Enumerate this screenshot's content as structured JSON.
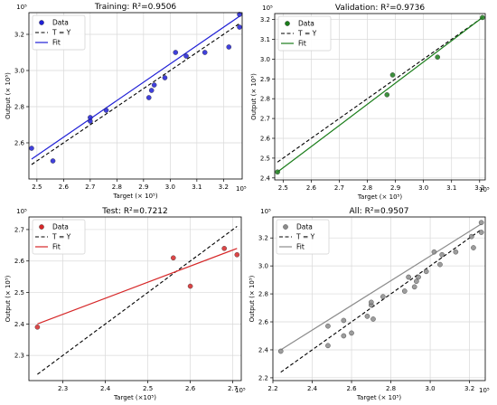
{
  "chart_data": [
    {
      "type": "scatter",
      "title": "Training: R²=0.9506",
      "xlabel": "Target (× 10⁵)",
      "ylabel": "Output (× 10⁵)",
      "x_exponent": "10⁵",
      "y_exponent": "10⁵",
      "xlim": [
        2.47,
        3.27
      ],
      "ylim": [
        2.4,
        3.32
      ],
      "xticks": [
        "2.5",
        "2.6",
        "2.7",
        "2.8",
        "2.9",
        "3.0",
        "3.1",
        "3.2"
      ],
      "xtick_values": [
        2.5,
        2.6,
        2.7,
        2.8,
        2.9,
        3.0,
        3.1,
        3.2
      ],
      "yticks": [
        "2.6",
        "2.8",
        "3.0",
        "3.2"
      ],
      "ytick_values": [
        2.6,
        2.8,
        3.0,
        3.2
      ],
      "grid": true,
      "legend": "top-left",
      "legend_entries": [
        "Data",
        "T = Y",
        "Fit"
      ],
      "color": "#1f1fd6",
      "points": [
        [
          2.48,
          2.57
        ],
        [
          2.56,
          2.5
        ],
        [
          2.7,
          2.72
        ],
        [
          2.7,
          2.74
        ],
        [
          2.76,
          2.78
        ],
        [
          2.92,
          2.85
        ],
        [
          2.93,
          2.89
        ],
        [
          2.94,
          2.92
        ],
        [
          2.98,
          2.96
        ],
        [
          3.02,
          3.1
        ],
        [
          3.06,
          3.08
        ],
        [
          3.13,
          3.1
        ],
        [
          3.22,
          3.13
        ],
        [
          3.26,
          3.24
        ],
        [
          3.26,
          3.31
        ]
      ],
      "fit": [
        [
          2.48,
          2.51
        ],
        [
          3.26,
          3.3
        ]
      ],
      "identity": [
        [
          2.48,
          2.48
        ],
        [
          3.26,
          3.26
        ]
      ]
    },
    {
      "type": "scatter",
      "title": "Validation: R²=0.9736",
      "xlabel": "Target (× 10⁵)",
      "ylabel": "Output (× 10⁵)",
      "x_exponent": "10⁵",
      "y_exponent": "10⁵",
      "xlim": [
        2.47,
        3.22
      ],
      "ylim": [
        2.39,
        3.23
      ],
      "xticks": [
        "2.5",
        "2.6",
        "2.7",
        "2.8",
        "2.9",
        "3.0",
        "3.1",
        "3.2"
      ],
      "xtick_values": [
        2.5,
        2.6,
        2.7,
        2.8,
        2.9,
        3.0,
        3.1,
        3.2
      ],
      "yticks": [
        "2.4",
        "2.5",
        "2.6",
        "2.7",
        "2.8",
        "2.9",
        "3.0",
        "3.1",
        "3.2"
      ],
      "ytick_values": [
        2.4,
        2.5,
        2.6,
        2.7,
        2.8,
        2.9,
        3.0,
        3.1,
        3.2
      ],
      "grid": true,
      "legend": "top-left",
      "legend_entries": [
        "Data",
        "T = Y",
        "Fit"
      ],
      "color": "#1a7d1a",
      "points": [
        [
          2.48,
          2.43
        ],
        [
          2.87,
          2.82
        ],
        [
          2.89,
          2.92
        ],
        [
          3.05,
          3.01
        ],
        [
          3.21,
          3.21
        ]
      ],
      "fit": [
        [
          2.48,
          2.43
        ],
        [
          3.21,
          3.21
        ]
      ],
      "identity": [
        [
          2.48,
          2.48
        ],
        [
          3.21,
          3.21
        ]
      ]
    },
    {
      "type": "scatter",
      "title": "Test: R²=0.7212",
      "xlabel": "Target (×10⁵)",
      "ylabel": "Output (× 10⁵)",
      "x_exponent": "10⁵",
      "y_exponent": "10⁵",
      "xlim": [
        2.22,
        2.72
      ],
      "ylim": [
        2.22,
        2.74
      ],
      "xticks": [
        "2.3",
        "2.4",
        "2.5",
        "2.6",
        "2.7"
      ],
      "xtick_values": [
        2.3,
        2.4,
        2.5,
        2.6,
        2.7
      ],
      "yticks": [
        "2.3",
        "2.4",
        "2.5",
        "2.6",
        "2.7"
      ],
      "ytick_values": [
        2.3,
        2.4,
        2.5,
        2.6,
        2.7
      ],
      "grid": true,
      "legend": "top-left",
      "legend_entries": [
        "Data",
        "T = Y",
        "Fit"
      ],
      "color": "#d62728",
      "points": [
        [
          2.24,
          2.39
        ],
        [
          2.56,
          2.61
        ],
        [
          2.6,
          2.52
        ],
        [
          2.68,
          2.64
        ],
        [
          2.71,
          2.62
        ]
      ],
      "fit": [
        [
          2.24,
          2.4
        ],
        [
          2.71,
          2.64
        ]
      ],
      "identity": [
        [
          2.24,
          2.24
        ],
        [
          2.71,
          2.71
        ]
      ]
    },
    {
      "type": "scatter",
      "title": "All: R²=0.9507",
      "xlabel": "Target (× 10⁵)",
      "ylabel": "Output (× 10⁵)",
      "x_exponent": "10⁵",
      "y_exponent": "10⁵",
      "xlim": [
        2.2,
        3.28
      ],
      "ylim": [
        2.18,
        3.35
      ],
      "xticks": [
        "2.2",
        "2.4",
        "2.6",
        "2.8",
        "3.0",
        "3.2"
      ],
      "xtick_values": [
        2.2,
        2.4,
        2.6,
        2.8,
        3.0,
        3.2
      ],
      "yticks": [
        "2.2",
        "2.4",
        "2.6",
        "2.8",
        "3.0",
        "3.2"
      ],
      "ytick_values": [
        2.2,
        2.4,
        2.6,
        2.8,
        3.0,
        3.2
      ],
      "grid": true,
      "legend": "top-left",
      "legend_entries": [
        "Data",
        "T = Y",
        "Fit"
      ],
      "color": "#8c8c8c",
      "points": [
        [
          2.24,
          2.39
        ],
        [
          2.48,
          2.43
        ],
        [
          2.48,
          2.57
        ],
        [
          2.56,
          2.5
        ],
        [
          2.56,
          2.61
        ],
        [
          2.6,
          2.52
        ],
        [
          2.68,
          2.64
        ],
        [
          2.7,
          2.72
        ],
        [
          2.7,
          2.74
        ],
        [
          2.71,
          2.62
        ],
        [
          2.76,
          2.78
        ],
        [
          2.87,
          2.82
        ],
        [
          2.89,
          2.92
        ],
        [
          2.92,
          2.85
        ],
        [
          2.93,
          2.89
        ],
        [
          2.94,
          2.92
        ],
        [
          2.98,
          2.96
        ],
        [
          3.02,
          3.1
        ],
        [
          3.05,
          3.01
        ],
        [
          3.06,
          3.08
        ],
        [
          3.13,
          3.1
        ],
        [
          3.21,
          3.21
        ],
        [
          3.22,
          3.13
        ],
        [
          3.26,
          3.24
        ],
        [
          3.26,
          3.31
        ]
      ],
      "fit": [
        [
          2.24,
          2.4
        ],
        [
          3.26,
          3.3
        ]
      ],
      "identity": [
        [
          2.24,
          2.24
        ],
        [
          3.26,
          3.26
        ]
      ]
    }
  ]
}
